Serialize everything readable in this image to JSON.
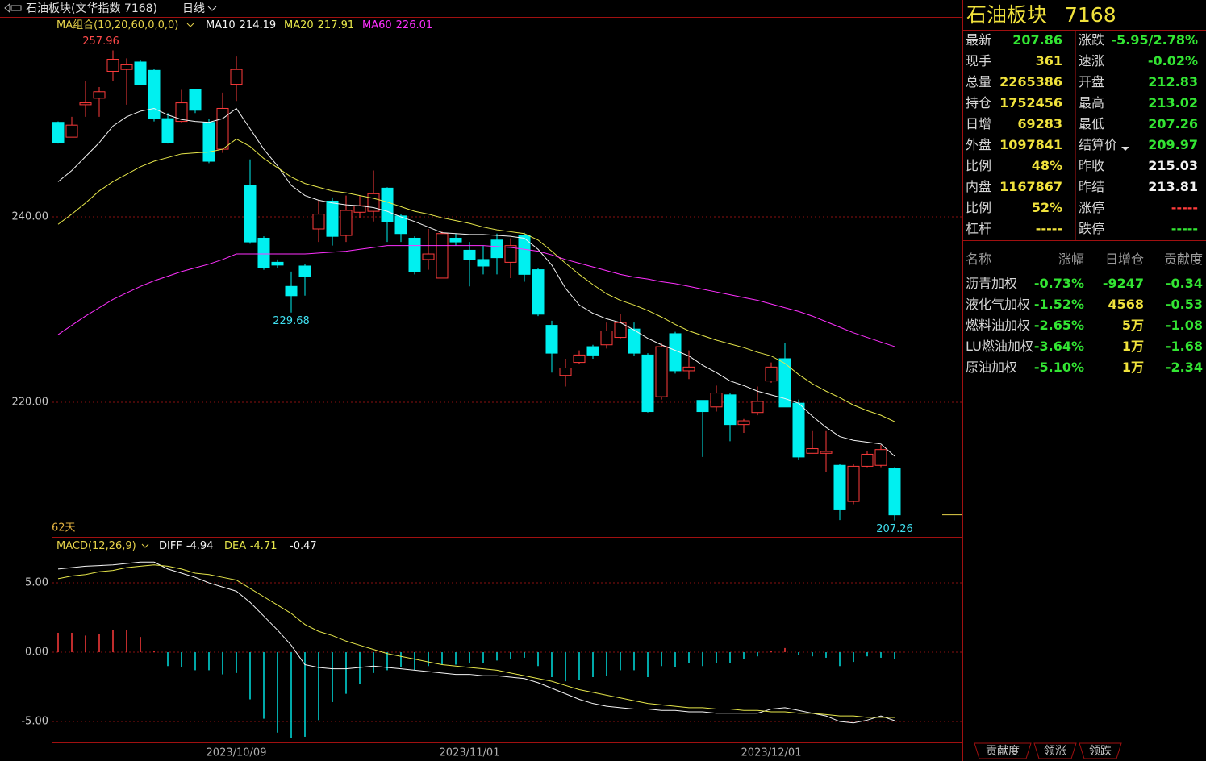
{
  "header": {
    "title": "石油板块(文华指数 7168)",
    "period": "日线"
  },
  "chart_data": [
    {
      "type": "candlestick",
      "indicator": "MA组合(10,20,60,0,0,0)",
      "days_label": "62天",
      "up_color": "#ff3b3b",
      "down_color": "#00f0f0",
      "ylim": [
        205.57,
        261.48
      ],
      "yticks": [
        {
          "value": 220,
          "label": "220.00"
        },
        {
          "value": 240,
          "label": "240.00"
        }
      ],
      "grid": true,
      "open": [
        250.2,
        248.6,
        252.1,
        252.8,
        255.7,
        255.9,
        256.7,
        255.8,
        250.6,
        250.3,
        253.7,
        250.2,
        247.3,
        254.3,
        243.4,
        237.7,
        235.1,
        232.5,
        234.7,
        238.7,
        241.7,
        238.0,
        240.5,
        240.6,
        243.1,
        240.1,
        237.7,
        235.4,
        233.4,
        237.7,
        236.4,
        235.4,
        237.5,
        235.1,
        238.0,
        234.3,
        228.3,
        222.9,
        224.3,
        226.0,
        226.2,
        227.0,
        227.9,
        225.1,
        220.6,
        227.4,
        223.4,
        220.2,
        219.5,
        220.8,
        217.6,
        218.9,
        222.3,
        224.7,
        219.9,
        214.5,
        214.5,
        213.2,
        209.3,
        213.1,
        213.2,
        212.83
      ],
      "high": [
        250.3,
        250.8,
        254.7,
        254.0,
        257.96,
        257.1,
        256.9,
        256.0,
        251.2,
        253.7,
        253.8,
        250.6,
        253.4,
        257.3,
        246.2,
        237.9,
        235.4,
        234.1,
        234.9,
        241.8,
        242.1,
        242.3,
        242.3,
        245.0,
        243.2,
        240.3,
        237.9,
        238.7,
        238.4,
        238.2,
        237.3,
        236.9,
        238.2,
        237.7,
        238.3,
        234.5,
        228.8,
        224.7,
        225.6,
        226.2,
        228.6,
        229.5,
        228.6,
        225.3,
        226.4,
        227.6,
        225.6,
        220.2,
        221.8,
        221.0,
        218.2,
        221.7,
        224.3,
        226.4,
        220.3,
        216.9,
        216.9,
        213.4,
        213.4,
        214.7,
        215.4,
        213.02
      ],
      "low": [
        247.9,
        248.6,
        250.8,
        250.8,
        254.7,
        252.1,
        254.3,
        250.3,
        247.9,
        250.2,
        251.2,
        245.8,
        246.9,
        252.5,
        237.1,
        234.3,
        234.5,
        229.68,
        231.5,
        237.3,
        236.9,
        237.3,
        239.9,
        239.5,
        237.3,
        237.3,
        233.8,
        234.3,
        233.4,
        236.9,
        232.5,
        233.8,
        233.8,
        233.4,
        233.0,
        229.3,
        223.2,
        221.7,
        224.1,
        224.7,
        225.8,
        226.9,
        225.0,
        218.9,
        220.3,
        223.1,
        222.5,
        214.1,
        219.0,
        215.8,
        216.7,
        218.6,
        222.1,
        219.5,
        213.8,
        214.5,
        212.5,
        207.3,
        209.0,
        213.0,
        213.0,
        207.26
      ],
      "close": [
        248.0,
        249.9,
        252.3,
        253.5,
        257.0,
        256.4,
        254.3,
        250.6,
        248.0,
        252.3,
        251.5,
        246.0,
        251.7,
        255.9,
        237.3,
        234.5,
        234.8,
        231.5,
        233.6,
        240.3,
        237.9,
        240.7,
        241.2,
        242.5,
        239.5,
        238.2,
        234.1,
        236.0,
        238.2,
        237.3,
        235.4,
        234.7,
        235.6,
        236.9,
        233.8,
        229.5,
        225.3,
        223.7,
        225.1,
        225.1,
        227.7,
        228.6,
        225.3,
        219.0,
        226.0,
        223.4,
        223.8,
        219.0,
        221.0,
        217.6,
        218.0,
        220.1,
        223.8,
        219.5,
        214.1,
        215.0,
        214.7,
        208.4,
        213.1,
        214.4,
        214.9,
        207.86
      ],
      "annotations": [
        {
          "label": "257.96",
          "value": 257.96
        },
        {
          "label": "229.68",
          "value": 229.68
        },
        {
          "label": "207.26",
          "value": 207.26
        }
      ],
      "series": [
        {
          "name": "MA10",
          "color": "#f4f4f4",
          "legend_value": 214.19,
          "values": [
            243.8,
            245.0,
            246.5,
            248.0,
            249.8,
            250.8,
            251.4,
            251.7,
            251.0,
            250.5,
            250.3,
            250.2,
            250.6,
            251.7,
            249.5,
            247.3,
            245.5,
            243.4,
            242.3,
            241.8,
            241.5,
            241.3,
            241.2,
            241.0,
            240.6,
            240.0,
            239.5,
            238.9,
            238.3,
            238.2,
            238.1,
            238.1,
            238.0,
            237.9,
            237.7,
            236.5,
            234.8,
            232.3,
            230.5,
            229.6,
            229.0,
            228.6,
            227.8,
            226.9,
            226.2,
            225.6,
            225.0,
            224.0,
            223.2,
            222.3,
            221.8,
            221.2,
            220.8,
            220.4,
            219.9,
            218.5,
            217.3,
            216.3,
            215.9,
            215.7,
            215.5,
            214.19
          ]
        },
        {
          "name": "MA20",
          "color": "#e6e64a",
          "legend_value": 217.91,
          "values": [
            239.2,
            240.3,
            241.5,
            242.8,
            243.8,
            244.6,
            245.4,
            246.0,
            246.4,
            246.8,
            246.9,
            247.0,
            247.3,
            248.4,
            247.6,
            246.3,
            245.3,
            244.3,
            243.6,
            243.2,
            242.8,
            242.6,
            242.3,
            242.0,
            241.6,
            241.1,
            240.6,
            240.3,
            239.9,
            239.6,
            239.3,
            238.9,
            238.6,
            238.4,
            238.2,
            237.5,
            236.3,
            235.0,
            233.8,
            232.7,
            231.7,
            231.0,
            230.5,
            229.9,
            229.2,
            228.4,
            227.7,
            227.2,
            226.7,
            226.3,
            225.9,
            225.4,
            225.0,
            224.2,
            223.0,
            222.0,
            221.2,
            220.5,
            219.7,
            219.1,
            218.6,
            217.91
          ]
        },
        {
          "name": "MA60",
          "color": "#ff30ff",
          "legend_value": 226.01,
          "values": [
            227.3,
            228.3,
            229.3,
            230.2,
            231.1,
            231.8,
            232.5,
            233.1,
            233.6,
            234.1,
            234.5,
            234.9,
            235.4,
            236.0,
            236.0,
            236.0,
            236.0,
            236.0,
            236.0,
            236.1,
            236.2,
            236.3,
            236.5,
            236.7,
            236.9,
            236.9,
            236.9,
            236.9,
            236.9,
            236.9,
            236.9,
            236.9,
            236.8,
            236.7,
            236.5,
            236.3,
            235.9,
            235.4,
            235.0,
            234.6,
            234.2,
            233.8,
            233.5,
            233.3,
            233.0,
            232.8,
            232.5,
            232.2,
            231.9,
            231.6,
            231.3,
            231.0,
            230.6,
            230.2,
            229.8,
            229.3,
            228.7,
            228.1,
            227.5,
            227.0,
            226.5,
            226.01
          ]
        }
      ]
    },
    {
      "type": "macd",
      "indicator": "MACD(12,26,9)",
      "categories": [
        null,
        null,
        null,
        null,
        null,
        null,
        null,
        null,
        null,
        null,
        null,
        null,
        null,
        "2023/10/09",
        null,
        null,
        null,
        null,
        null,
        null,
        null,
        null,
        null,
        null,
        null,
        null,
        null,
        null,
        null,
        null,
        "2023/11/01",
        null,
        null,
        null,
        null,
        null,
        null,
        null,
        null,
        null,
        null,
        null,
        null,
        null,
        null,
        null,
        null,
        null,
        null,
        null,
        null,
        null,
        "2023/12/01",
        null,
        null,
        null,
        null,
        null,
        null,
        null,
        null,
        null
      ],
      "ylim": [
        -6.51,
        8.26
      ],
      "yticks": [
        {
          "value": 5,
          "label": "5.00"
        },
        {
          "value": 0,
          "label": "0.00"
        },
        {
          "value": -5,
          "label": "-5.00"
        }
      ],
      "grid": true,
      "up_color": "#ff3b3b",
      "down_color": "#00e0e0",
      "histogram": {
        "color": "#f2f2f2",
        "legend_value": -0.47,
        "values": [
          1.4,
          1.4,
          1.2,
          1.3,
          1.6,
          1.6,
          1.1,
          0.1,
          -1.0,
          -1.1,
          -1.3,
          -1.3,
          -1.6,
          -1.5,
          -3.4,
          -4.8,
          -5.8,
          -6.2,
          -6.1,
          -4.9,
          -3.6,
          -3.0,
          -2.3,
          -1.5,
          -1.3,
          -1.1,
          -1.3,
          -1.0,
          -0.9,
          -0.9,
          -0.8,
          -0.8,
          -0.6,
          -0.5,
          -0.4,
          -1.0,
          -1.8,
          -2.1,
          -2.0,
          -1.8,
          -1.7,
          -1.3,
          -1.3,
          -1.8,
          -1.0,
          -1.1,
          -0.8,
          -1.0,
          -0.8,
          -0.8,
          -0.5,
          -0.3,
          0.1,
          0.3,
          -0.2,
          -0.3,
          -0.4,
          -1.0,
          -0.7,
          -0.3,
          -0.4,
          -0.47
        ]
      },
      "series": [
        {
          "name": "DIFF",
          "color": "#f4f4f4",
          "legend_value": -4.94,
          "values": [
            6.0,
            6.1,
            6.2,
            6.25,
            6.3,
            6.4,
            6.5,
            6.5,
            6.0,
            5.7,
            5.4,
            5.0,
            4.7,
            4.4,
            3.6,
            2.6,
            1.6,
            0.5,
            -0.9,
            -1.1,
            -1.2,
            -1.2,
            -1.1,
            -1.0,
            -1.1,
            -1.2,
            -1.3,
            -1.4,
            -1.5,
            -1.6,
            -1.6,
            -1.7,
            -1.7,
            -1.8,
            -1.9,
            -2.2,
            -2.6,
            -3.0,
            -3.4,
            -3.7,
            -3.9,
            -4.0,
            -4.1,
            -4.1,
            -4.2,
            -4.2,
            -4.3,
            -4.3,
            -4.4,
            -4.4,
            -4.4,
            -4.4,
            -4.1,
            -4.0,
            -4.2,
            -4.4,
            -4.6,
            -5.0,
            -5.1,
            -4.9,
            -4.6,
            -4.94
          ]
        },
        {
          "name": "DEA",
          "color": "#e6e64a",
          "legend_value": -4.71,
          "values": [
            5.3,
            5.5,
            5.6,
            5.8,
            5.9,
            6.1,
            6.2,
            6.3,
            6.2,
            6.0,
            5.7,
            5.6,
            5.4,
            5.2,
            4.6,
            4.0,
            3.4,
            2.8,
            2.0,
            1.5,
            1.2,
            0.8,
            0.5,
            0.2,
            -0.1,
            -0.3,
            -0.5,
            -0.7,
            -0.9,
            -1.0,
            -1.1,
            -1.2,
            -1.3,
            -1.5,
            -1.7,
            -1.9,
            -2.1,
            -2.4,
            -2.7,
            -2.9,
            -3.1,
            -3.3,
            -3.5,
            -3.7,
            -3.8,
            -3.9,
            -4.0,
            -4.0,
            -4.1,
            -4.1,
            -4.2,
            -4.2,
            -4.3,
            -4.3,
            -4.4,
            -4.4,
            -4.5,
            -4.6,
            -4.6,
            -4.7,
            -4.7,
            -4.71
          ]
        }
      ]
    }
  ],
  "quote": {
    "title": "石油板块",
    "code": "7168",
    "left": [
      {
        "label": "最新",
        "value": "207.86"
      },
      {
        "label": "现手",
        "value": "361"
      },
      {
        "label": "总量",
        "value": "2265386"
      },
      {
        "label": "持仓",
        "value": "1752456"
      },
      {
        "label": "日增",
        "value": "69283"
      },
      {
        "label": "外盘",
        "value": "1097841"
      },
      {
        "label": "比例",
        "value": "48%"
      },
      {
        "label": "内盘",
        "value": "1167867"
      },
      {
        "label": "比例",
        "value": "52%"
      },
      {
        "label": "杠杆",
        "value": "-----"
      }
    ],
    "right": [
      {
        "label": "涨跌",
        "value": "-5.95/2.78%"
      },
      {
        "label": "速涨",
        "value": "-0.02%"
      },
      {
        "label": "开盘",
        "value": "212.83"
      },
      {
        "label": "最高",
        "value": "213.02"
      },
      {
        "label": "最低",
        "value": "207.26"
      },
      {
        "label": "结算价",
        "value": "209.97"
      },
      {
        "label": "昨收",
        "value": "215.03"
      },
      {
        "label": "昨结",
        "value": "213.81"
      },
      {
        "label": "涨停",
        "value": "-----"
      },
      {
        "label": "跌停",
        "value": "-----"
      }
    ]
  },
  "components": {
    "columns": [
      "名称",
      "涨幅",
      "日增仓",
      "贡献度"
    ],
    "rows": [
      [
        "沥青加权",
        "-0.73%",
        "-9247",
        "-0.34"
      ],
      [
        "液化气加权",
        "-1.52%",
        "4568",
        "-0.53"
      ],
      [
        "燃料油加权",
        "-2.65%",
        "5万",
        "-1.08"
      ],
      [
        "LU燃油加权",
        "-3.64%",
        "1万",
        "-1.68"
      ],
      [
        "原油加权",
        "-5.10%",
        "1万",
        "-2.34"
      ]
    ]
  },
  "tabs": [
    "贡献度",
    "领涨",
    "领跌"
  ]
}
